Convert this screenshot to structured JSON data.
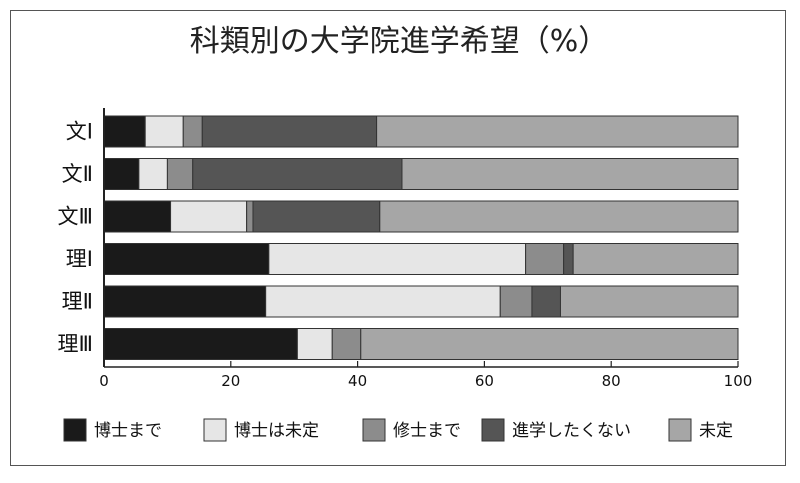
{
  "chart_data": {
    "type": "bar",
    "orientation": "horizontal",
    "stacked": true,
    "title": "科類別の大学院進学希望（%）",
    "xlabel": "",
    "ylabel": "",
    "xlim": [
      0,
      100
    ],
    "xticks": [
      "0",
      "20",
      "40",
      "60",
      "80",
      "100"
    ],
    "grid": false,
    "legend": "bottom",
    "categories": [
      "文Ⅰ",
      "文Ⅱ",
      "文Ⅲ",
      "理Ⅰ",
      "理Ⅱ",
      "理Ⅲ"
    ],
    "series": [
      {
        "name": "博士まで",
        "color": "#1a1a1a",
        "values": [
          6.5,
          5.5,
          10.5,
          26.0,
          25.5,
          30.5
        ]
      },
      {
        "name": "博士は未定",
        "color": "#e6e6e6",
        "values": [
          6.0,
          4.5,
          12.0,
          40.5,
          37.0,
          5.5
        ]
      },
      {
        "name": "修士まで",
        "color": "#8c8c8c",
        "values": [
          3.0,
          4.0,
          1.0,
          6.0,
          5.0,
          4.5
        ]
      },
      {
        "name": "進学したくない",
        "color": "#555555",
        "values": [
          27.5,
          33.0,
          20.0,
          1.5,
          4.5,
          0.0
        ]
      },
      {
        "name": "未定",
        "color": "#a6a6a6",
        "values": [
          57.0,
          53.0,
          56.5,
          26.0,
          28.0,
          59.5
        ]
      }
    ]
  }
}
